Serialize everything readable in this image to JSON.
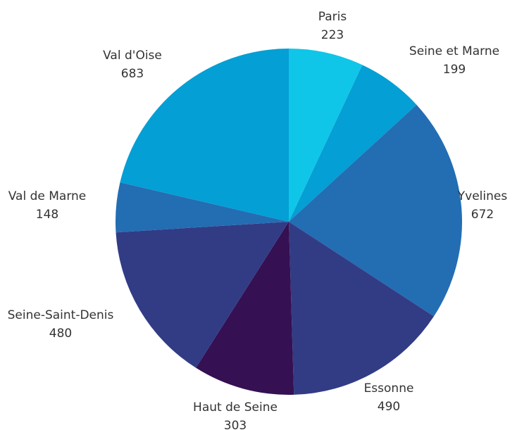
{
  "chart_data": {
    "type": "pie",
    "title": "",
    "legend": "none",
    "slices": [
      {
        "label": "Paris",
        "value": 223,
        "color": "#0fc6e8"
      },
      {
        "label": "Seine et Marne",
        "value": 199,
        "color": "#049fd4"
      },
      {
        "label": "Yvelines",
        "value": 672,
        "color": "#236db3"
      },
      {
        "label": "Essonne",
        "value": 490,
        "color": "#323c84"
      },
      {
        "label": "Haut de Seine",
        "value": 303,
        "color": "#351052"
      },
      {
        "label": "Seine-Saint-Denis",
        "value": 480,
        "color": "#313c85"
      },
      {
        "label": "Val de Marne",
        "value": 148,
        "color": "#236db3"
      },
      {
        "label": "Val d'Oise",
        "value": 683,
        "color": "#049fd4"
      }
    ]
  }
}
